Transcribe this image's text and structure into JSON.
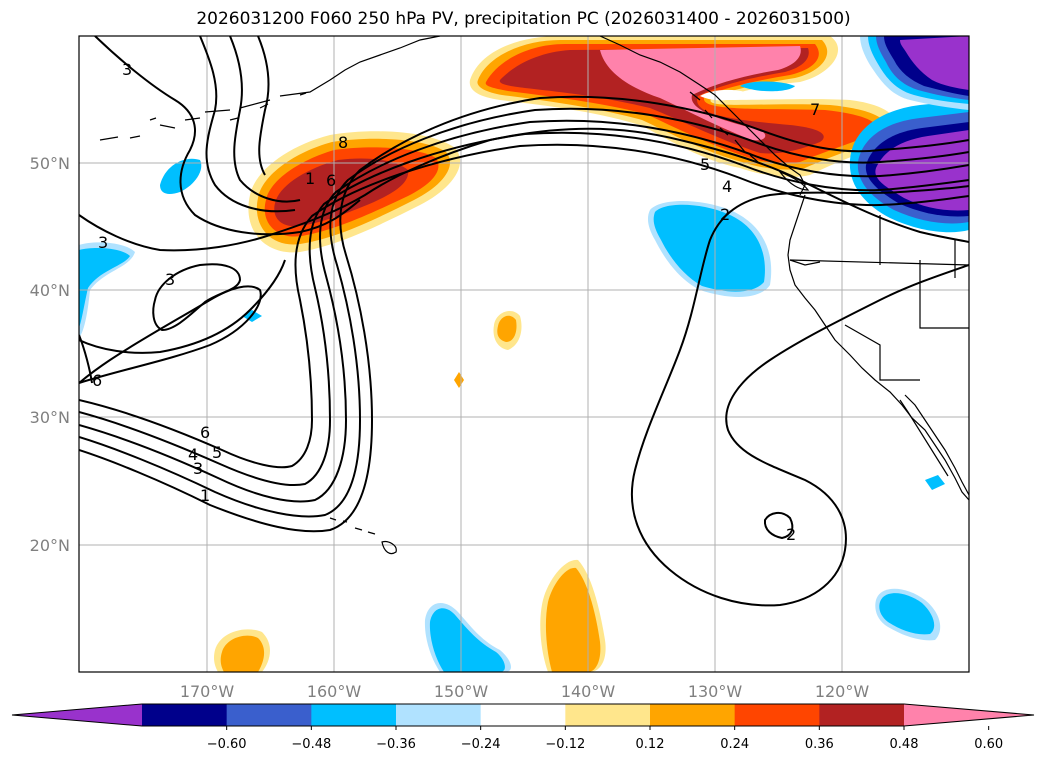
{
  "title": "2026031200 F060 250 hPa PV, precipitation PC (2026031400 - 2026031500)",
  "lat_labels": [
    "50°N",
    "40°N",
    "30°N",
    "20°N"
  ],
  "lon_labels": [
    "170°W",
    "160°W",
    "150°W",
    "140°W",
    "130°W",
    "120°W"
  ],
  "colorbar": {
    "ticks": [
      "−0.60",
      "−0.48",
      "−0.36",
      "−0.24",
      "−0.12",
      "0.12",
      "0.24",
      "0.36",
      "0.48",
      "0.60"
    ],
    "colors": [
      "#9932cc",
      "#00008b",
      "#3a5fcd",
      "#00bfff",
      "#b0e2ff",
      "#ffffff",
      "#ffe68c",
      "#ffa500",
      "#ff4500",
      "#b22222",
      "#ff82ab"
    ]
  },
  "contour_labels": [
    "3",
    "8",
    "1",
    "6",
    "3",
    "3",
    "6",
    "6",
    "5",
    "4",
    "3",
    "1",
    "5",
    "4",
    "2",
    "7",
    "2"
  ]
}
